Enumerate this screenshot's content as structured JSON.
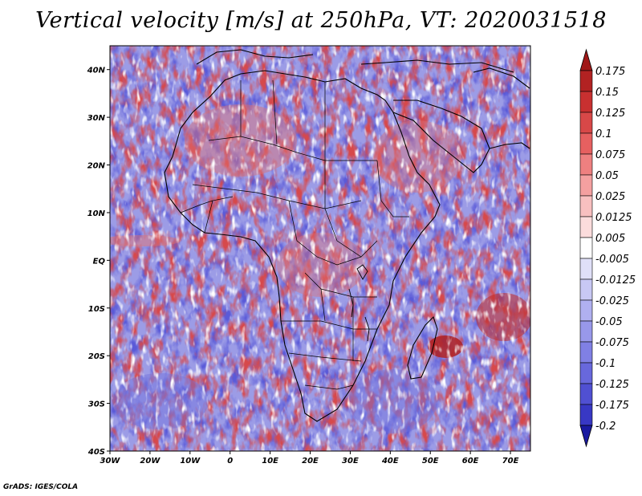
{
  "title": "Vertical velocity [m/s] at 250hPa, VT: 2020031518",
  "footer": "GrADS: IGES/COLA",
  "map": {
    "lon_range": [
      -30,
      75
    ],
    "lat_range": [
      -40,
      45
    ],
    "lon_ticks": [
      {
        "value": -30,
        "label": "30W"
      },
      {
        "value": -20,
        "label": "20W"
      },
      {
        "value": -10,
        "label": "10W"
      },
      {
        "value": 0,
        "label": "0"
      },
      {
        "value": 10,
        "label": "10E"
      },
      {
        "value": 20,
        "label": "20E"
      },
      {
        "value": 30,
        "label": "30E"
      },
      {
        "value": 40,
        "label": "40E"
      },
      {
        "value": 50,
        "label": "50E"
      },
      {
        "value": 60,
        "label": "60E"
      },
      {
        "value": 70,
        "label": "70E"
      }
    ],
    "lat_ticks": [
      {
        "value": 40,
        "label": "40N"
      },
      {
        "value": 30,
        "label": "30N"
      },
      {
        "value": 20,
        "label": "20N"
      },
      {
        "value": 10,
        "label": "10N"
      },
      {
        "value": 0,
        "label": "EQ"
      },
      {
        "value": -10,
        "label": "10S"
      },
      {
        "value": -20,
        "label": "20S"
      },
      {
        "value": -30,
        "label": "30S"
      },
      {
        "value": -40,
        "label": "40S"
      }
    ]
  },
  "colorbar": {
    "levels": [
      {
        "label": "0.175",
        "color": "#b22222"
      },
      {
        "label": "0.15",
        "color": "#c83030"
      },
      {
        "label": "0.125",
        "color": "#d84848"
      },
      {
        "label": "0.1",
        "color": "#e66060"
      },
      {
        "label": "0.075",
        "color": "#ee8080"
      },
      {
        "label": "0.05",
        "color": "#f4a0a0"
      },
      {
        "label": "0.025",
        "color": "#f8c0c0"
      },
      {
        "label": "0.0125",
        "color": "#fbdcdc"
      },
      {
        "label": "0.005",
        "color": "#ffffff"
      },
      {
        "label": "-0.005",
        "color": "#e0e0f8"
      },
      {
        "label": "-0.0125",
        "color": "#c8c8f4"
      },
      {
        "label": "-0.025",
        "color": "#b0b0f0"
      },
      {
        "label": "-0.05",
        "color": "#9898ea"
      },
      {
        "label": "-0.075",
        "color": "#8080e4"
      },
      {
        "label": "-0.1",
        "color": "#6868dc"
      },
      {
        "label": "-0.125",
        "color": "#5050d2"
      },
      {
        "label": "-0.175",
        "color": "#3838c4"
      },
      {
        "label": "-0.2",
        "color": "#2020b0"
      }
    ],
    "top_arrow_color": "#a01818",
    "bottom_arrow_color": "#1a1aa0"
  }
}
